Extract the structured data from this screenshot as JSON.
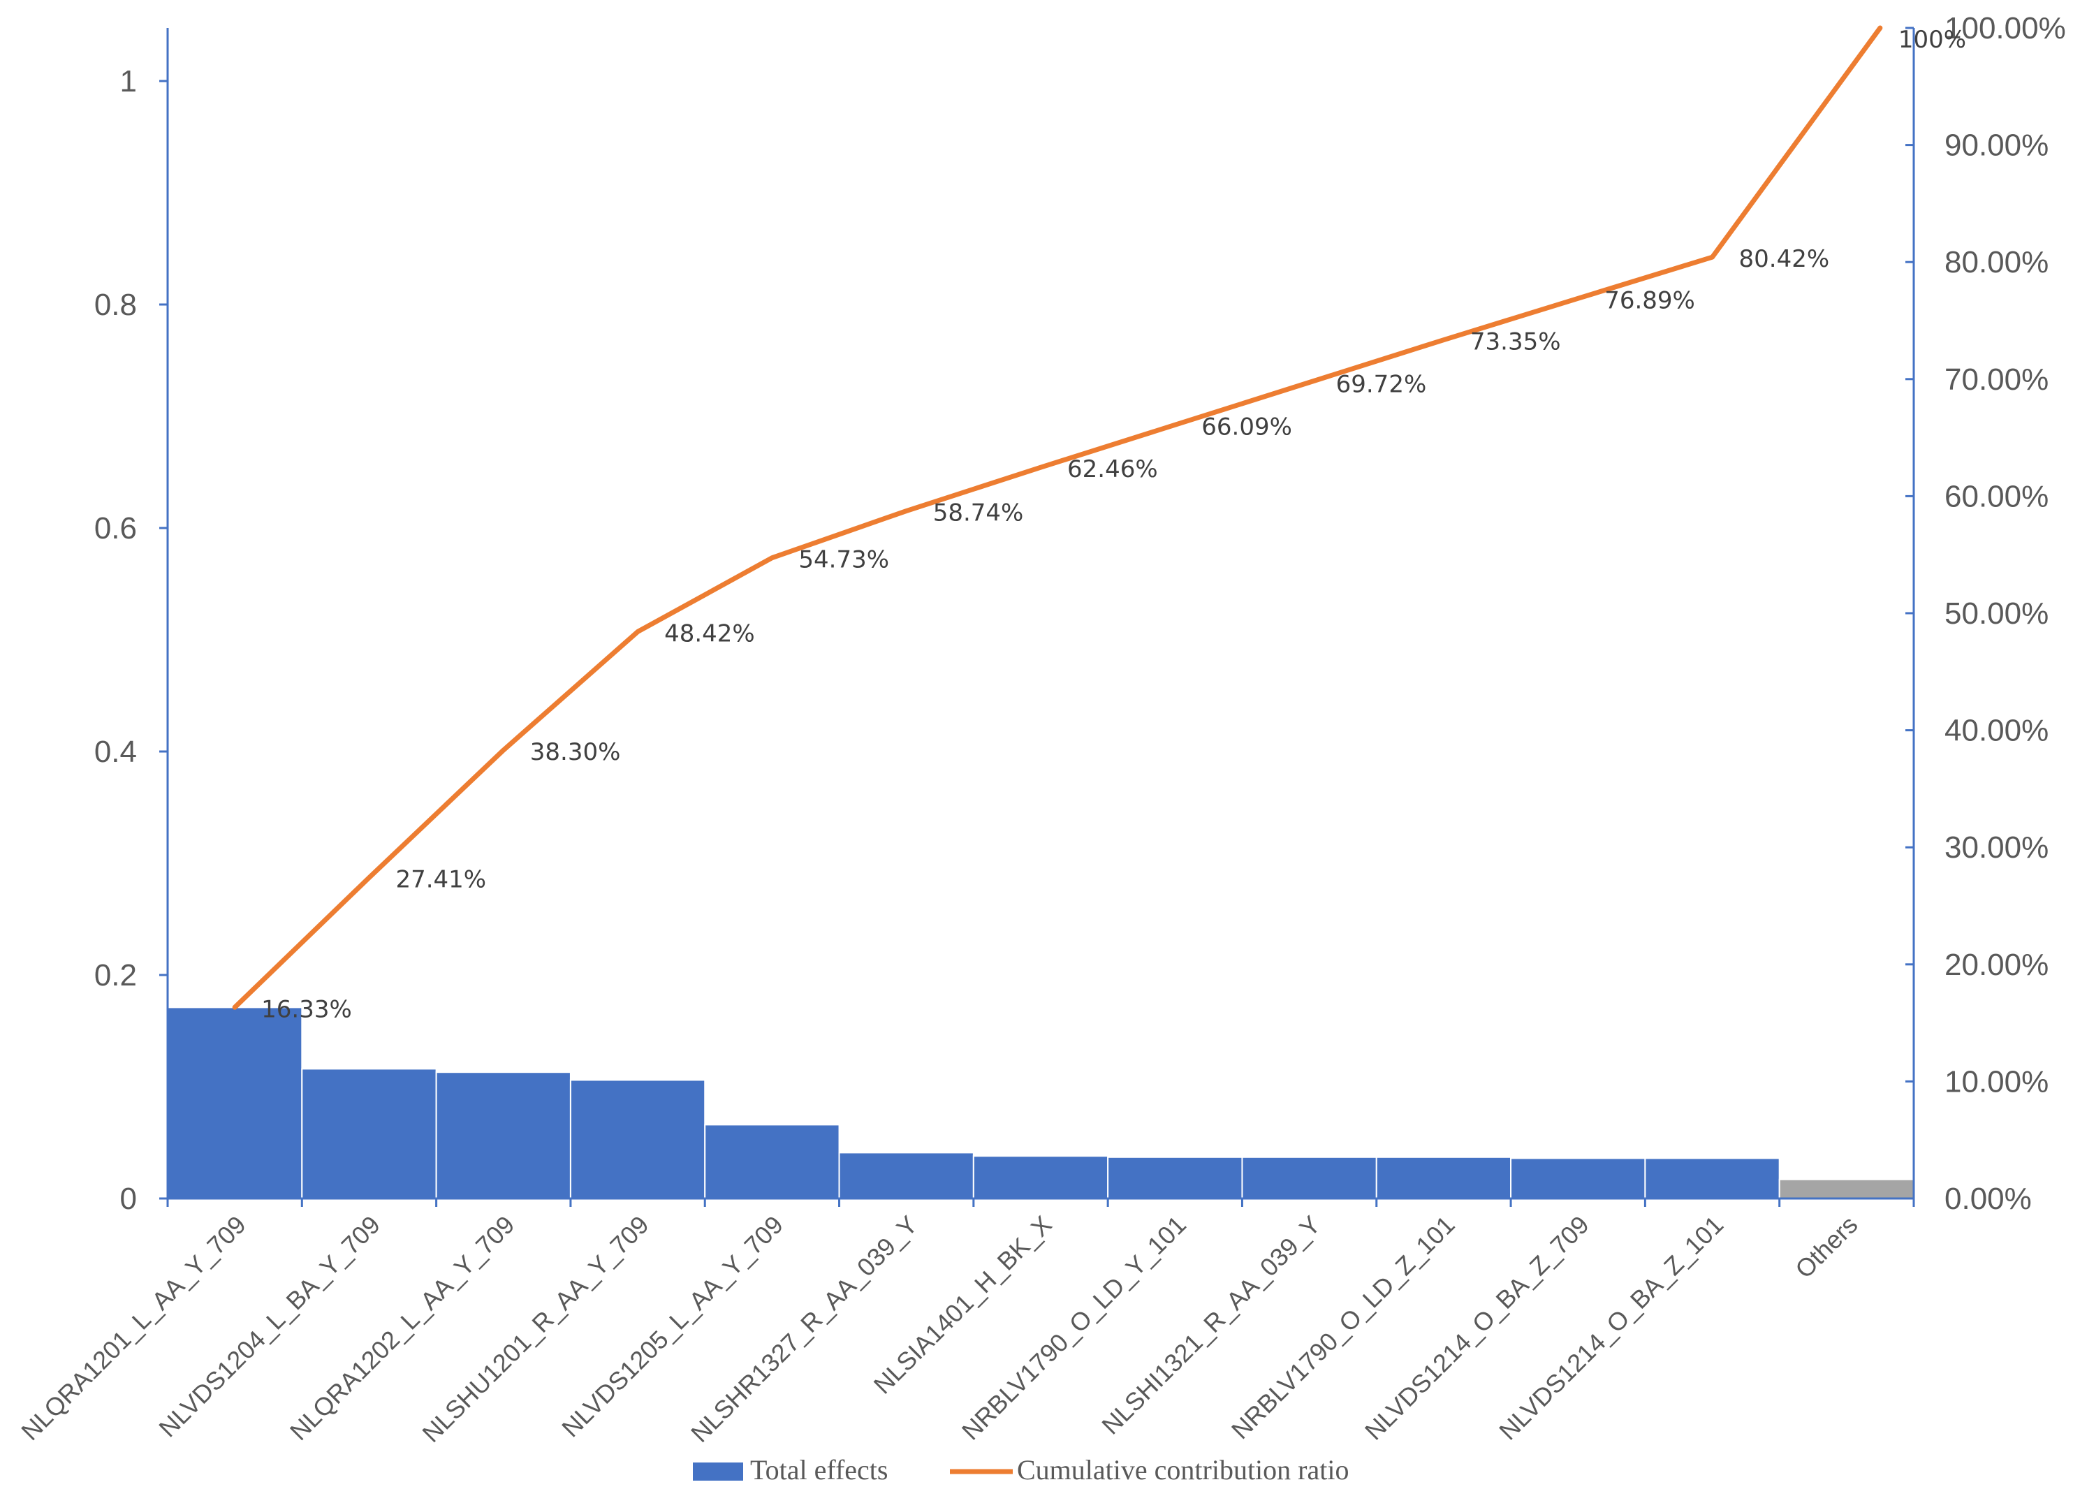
{
  "chart_data": {
    "type": "bar",
    "categories": [
      "NLQRA1201_L_AA_Y_709",
      "NLVDS1204_L_BA_Y_709",
      "NLQRA1202_L_AA_Y_709",
      "NLSHU1201_R_AA_Y_709",
      "NLVDS1205_L_AA_Y_709",
      "NLSHR1327_R_AA_039_Y",
      "NLSIA1401_H_BK_X",
      "NRBLV1790_O_LD_Y_101",
      "NLSHI1321_R_AA_039_Y",
      "NRBLV1790_O_LD_Z_101",
      "NLVDS1214_O_BA_Z_709",
      "NLVDS1214_O_BA_Z_101",
      "Others"
    ],
    "series": [
      {
        "name": "Total effects",
        "type": "bar",
        "axis": "left",
        "color": "#4472C4",
        "values": [
          0.171,
          0.116,
          0.113,
          0.106,
          0.066,
          0.041,
          0.038,
          0.037,
          0.037,
          0.037,
          0.036,
          0.036,
          0.017
        ],
        "point_colors": [
          "#4472C4",
          "#4472C4",
          "#4472C4",
          "#4472C4",
          "#4472C4",
          "#4472C4",
          "#4472C4",
          "#4472C4",
          "#4472C4",
          "#4472C4",
          "#4472C4",
          "#4472C4",
          "#A5A5A5"
        ]
      },
      {
        "name": "Cumulative contribution ratio",
        "type": "line",
        "axis": "right",
        "color": "#ED7D31",
        "values": [
          16.33,
          27.41,
          38.3,
          48.42,
          54.73,
          58.74,
          62.46,
          66.09,
          69.72,
          73.35,
          76.89,
          80.42,
          100
        ],
        "data_labels": [
          "16.33%",
          "27.41%",
          "38.30%",
          "48.42%",
          "54.73%",
          "58.74%",
          "62.46%",
          "66.09%",
          "69.72%",
          "73.35%",
          "76.89%",
          "80.42%",
          "100%"
        ]
      }
    ],
    "y_left": {
      "ylim": [
        0,
        1.05
      ],
      "ticks": [
        0,
        0.2,
        0.4,
        0.6,
        0.8,
        1
      ],
      "tick_labels": [
        "0",
        "0.2",
        "0.4",
        "0.6",
        "0.8",
        "1"
      ]
    },
    "y_right": {
      "ylim": [
        0,
        100
      ],
      "ticks": [
        0,
        10,
        20,
        30,
        40,
        50,
        60,
        70,
        80,
        90,
        100
      ],
      "tick_labels": [
        "0.00%",
        "10.00%",
        "20.00%",
        "30.00%",
        "40.00%",
        "50.00%",
        "60.00%",
        "70.00%",
        "80.00%",
        "90.00%",
        "100.00%"
      ]
    },
    "axis_color": "#4472C4",
    "grid": false,
    "legend": "bottom"
  }
}
